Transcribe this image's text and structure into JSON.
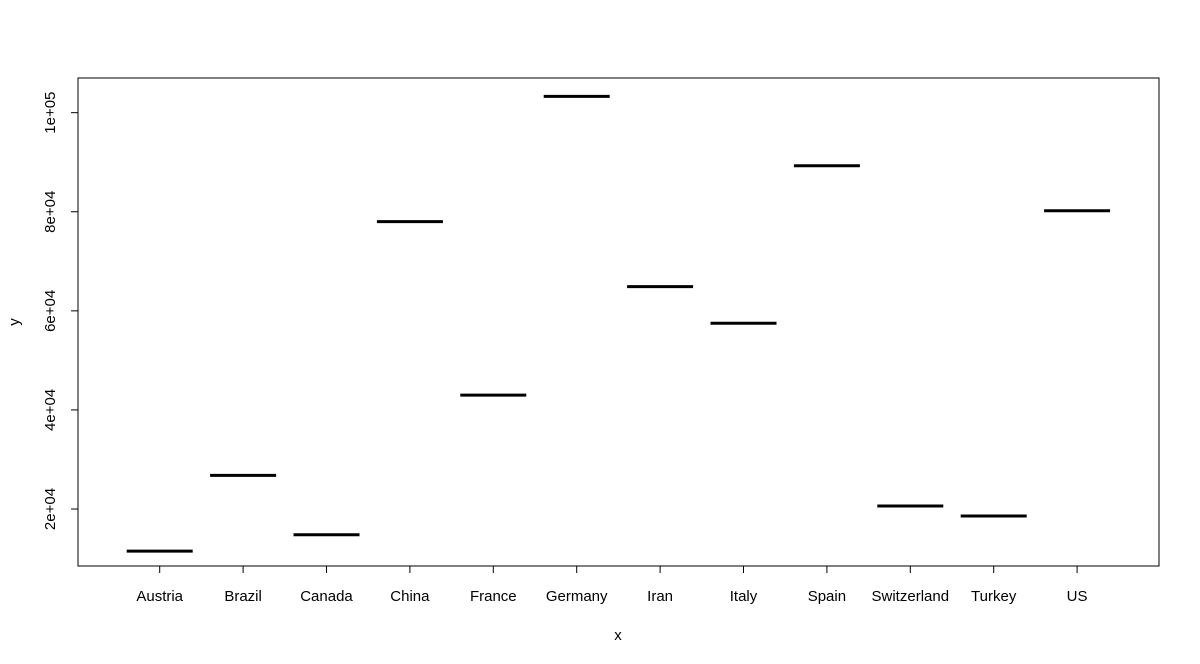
{
  "chart_data": {
    "type": "boxplot",
    "title": "",
    "xlabel": "x",
    "ylabel": "y",
    "categories": [
      "Austria",
      "Brazil",
      "Canada",
      "China",
      "France",
      "Germany",
      "Iran",
      "Italy",
      "Spain",
      "Switzerland",
      "Turkey",
      "US"
    ],
    "values": [
      11500,
      26800,
      14800,
      78000,
      43000,
      103300,
      64900,
      57500,
      89300,
      20600,
      18600,
      80200
    ],
    "ylim": [
      8500,
      107000
    ],
    "yticks": [
      20000,
      40000,
      60000,
      80000,
      100000
    ],
    "ytick_labels": [
      "2e+04",
      "4e+04",
      "6e+04",
      "8e+04",
      "1e+05"
    ],
    "grid": false,
    "line_color": "#000000"
  }
}
